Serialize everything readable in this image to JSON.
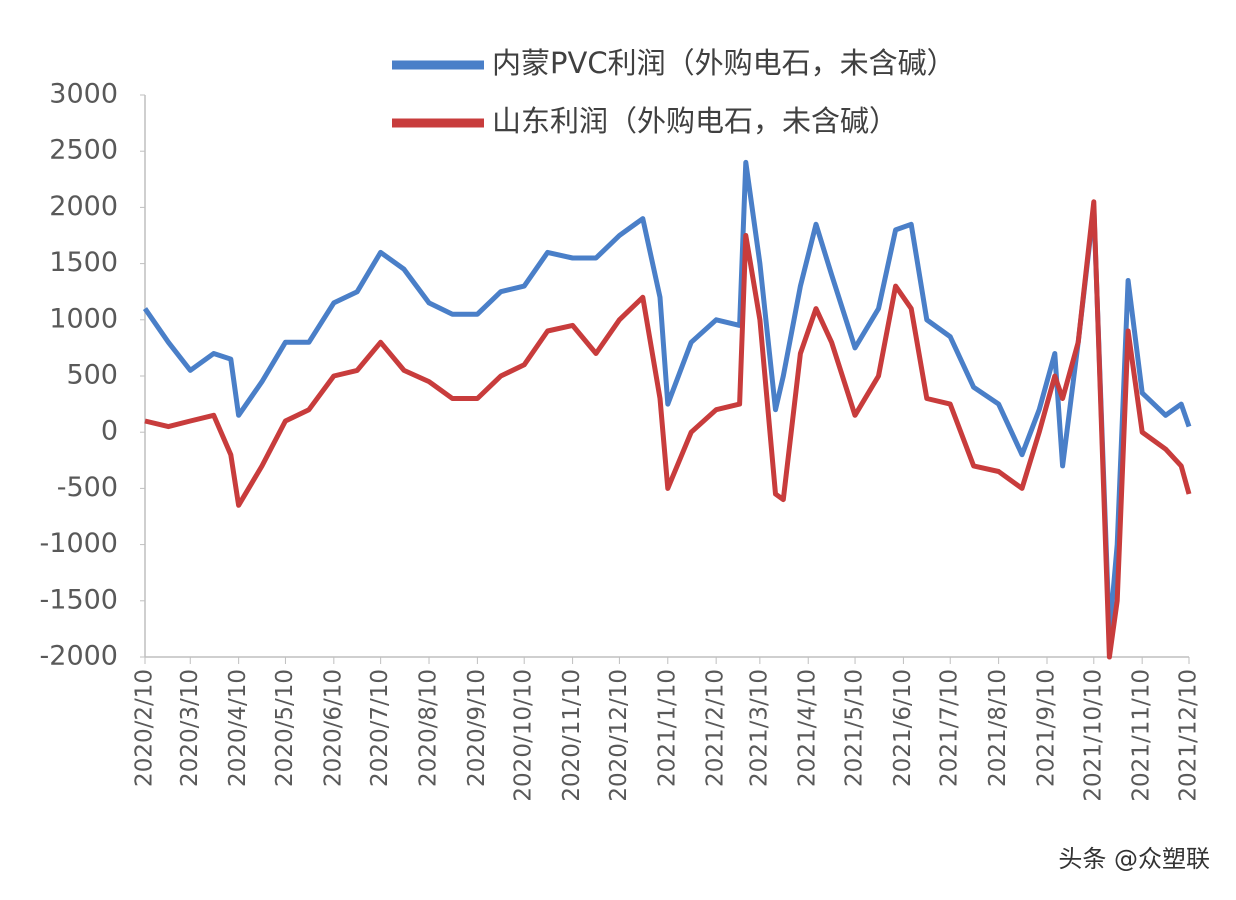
{
  "chart_data": {
    "type": "line",
    "x": [
      "2020/2/10",
      "2020/2/25",
      "2020/3/10",
      "2020/3/25",
      "2020/4/5",
      "2020/4/10",
      "2020/4/25",
      "2020/5/10",
      "2020/5/25",
      "2020/6/10",
      "2020/6/25",
      "2020/7/10",
      "2020/7/25",
      "2020/8/10",
      "2020/8/25",
      "2020/9/10",
      "2020/9/25",
      "2020/10/10",
      "2020/10/25",
      "2020/11/10",
      "2020/11/25",
      "2020/12/10",
      "2020/12/25",
      "2021/1/5",
      "2021/1/10",
      "2021/1/25",
      "2021/2/10",
      "2021/2/25",
      "2021/3/1",
      "2021/3/10",
      "2021/3/20",
      "2021/3/25",
      "2021/4/5",
      "2021/4/15",
      "2021/4/25",
      "2021/5/10",
      "2021/5/25",
      "2021/6/5",
      "2021/6/15",
      "2021/6/25",
      "2021/7/10",
      "2021/7/25",
      "2021/8/10",
      "2021/8/25",
      "2021/9/5",
      "2021/9/15",
      "2021/9/20",
      "2021/9/30",
      "2021/10/10",
      "2021/10/20",
      "2021/10/25",
      "2021/11/1",
      "2021/11/10",
      "2021/11/25",
      "2021/12/5",
      "2021/12/10"
    ],
    "series": [
      {
        "name": "内蒙PVC利润（外购电石，未含碱）",
        "color": "#4a7fc8",
        "values": [
          1100,
          800,
          550,
          700,
          650,
          150,
          450,
          800,
          800,
          1150,
          1250,
          1600,
          1450,
          1150,
          1050,
          1050,
          1250,
          1300,
          1600,
          1550,
          1550,
          1750,
          1900,
          1200,
          250,
          800,
          1000,
          950,
          2400,
          1500,
          200,
          500,
          1300,
          1850,
          1400,
          750,
          1100,
          1800,
          1850,
          1000,
          850,
          400,
          250,
          -200,
          200,
          700,
          -300,
          800,
          2000,
          -1800,
          -1000,
          1350,
          350,
          150,
          250,
          50
        ]
      },
      {
        "name": "山东利润（外购电石，未含碱）",
        "color": "#c83c3c",
        "values": [
          100,
          50,
          100,
          150,
          -200,
          -650,
          -300,
          100,
          200,
          500,
          550,
          800,
          550,
          450,
          300,
          300,
          500,
          600,
          900,
          950,
          700,
          1000,
          1200,
          300,
          -500,
          0,
          200,
          250,
          1750,
          1000,
          -550,
          -600,
          700,
          1100,
          800,
          150,
          500,
          1300,
          1100,
          300,
          250,
          -300,
          -350,
          -500,
          0,
          500,
          300,
          800,
          2050,
          -2000,
          -1500,
          900,
          0,
          -150,
          -300,
          -550
        ]
      }
    ],
    "xlim": [
      "2020/2/10",
      "2021/12/10"
    ],
    "xticks": [
      "2020/2/10",
      "2020/3/10",
      "2020/4/10",
      "2020/5/10",
      "2020/6/10",
      "2020/7/10",
      "2020/8/10",
      "2020/9/10",
      "2020/10/10",
      "2020/11/10",
      "2020/12/10",
      "2021/1/10",
      "2021/2/10",
      "2021/3/10",
      "2021/4/10",
      "2021/5/10",
      "2021/6/10",
      "2021/7/10",
      "2021/8/10",
      "2021/9/10",
      "2021/10/10",
      "2021/11/10",
      "2021/12/10"
    ],
    "ylim": [
      -2000,
      3000
    ],
    "yticks": [
      -2000,
      -1500,
      -1000,
      -500,
      0,
      500,
      1000,
      1500,
      2000,
      2500,
      3000
    ],
    "grid": false
  },
  "watermark": "头条 @众塑联"
}
